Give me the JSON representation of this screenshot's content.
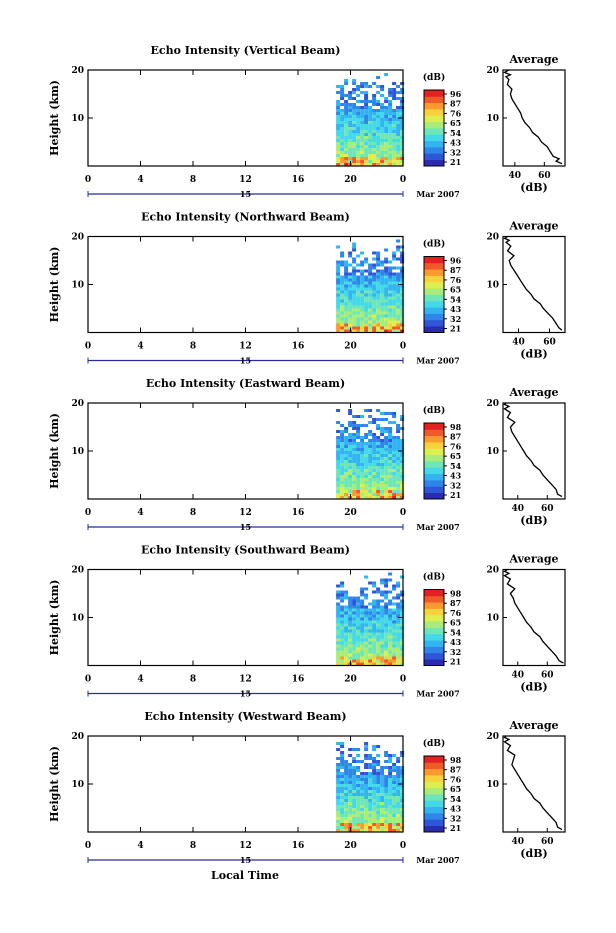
{
  "figure": {
    "xlabel": "Local Time",
    "date_label": "15",
    "month_label": "Mar 2007",
    "x_ticks": [
      "0",
      "4",
      "8",
      "12",
      "16",
      "20",
      "0"
    ],
    "y_label": "Height (km)",
    "y_ticks": [
      "10",
      "20"
    ],
    "colorbar_unit": "(dB)",
    "colorbar_colors": [
      "#2b2bb0",
      "#2f55d8",
      "#2f86e8",
      "#33b4f0",
      "#44d8e8",
      "#6ee6b8",
      "#a8ec7a",
      "#dcee50",
      "#f8d23c",
      "#f89a30",
      "#f05a2a",
      "#e02222"
    ]
  },
  "chart_data": [
    {
      "type": "heatmap",
      "title": "Echo Intensity (Vertical Beam)",
      "colorbar_ticks": [
        "96",
        "87",
        "76",
        "65",
        "54",
        "43",
        "32",
        "21"
      ],
      "profile": {
        "title": "Average",
        "xlabel": "(dB)",
        "x_ticks": [
          "40",
          "60"
        ],
        "y_ticks": [
          "10",
          "20"
        ],
        "xlim": [
          32,
          74
        ],
        "ylim": [
          0,
          20
        ],
        "points": [
          [
            72,
            0.5
          ],
          [
            68,
            1
          ],
          [
            70,
            1.5
          ],
          [
            66,
            2
          ],
          [
            64,
            3
          ],
          [
            62,
            4
          ],
          [
            58,
            5
          ],
          [
            56,
            6
          ],
          [
            52,
            7
          ],
          [
            50,
            8
          ],
          [
            47,
            9
          ],
          [
            45,
            10
          ],
          [
            44,
            11
          ],
          [
            42,
            12
          ],
          [
            40,
            13
          ],
          [
            38,
            14
          ],
          [
            37,
            15
          ],
          [
            38,
            16
          ],
          [
            35,
            17
          ],
          [
            36,
            18
          ],
          [
            34,
            18.6
          ],
          [
            37,
            19
          ],
          [
            33,
            19.5
          ],
          [
            36,
            20
          ]
        ]
      }
    },
    {
      "type": "heatmap",
      "title": "Echo Intensity (Northward Beam)",
      "colorbar_ticks": [
        "96",
        "87",
        "76",
        "65",
        "54",
        "43",
        "32",
        "21"
      ],
      "profile": {
        "title": "Average",
        "xlabel": "(dB)",
        "x_ticks": [
          "40",
          "60"
        ],
        "y_ticks": [
          "10",
          "20"
        ],
        "xlim": [
          30,
          70
        ],
        "ylim": [
          0,
          20
        ],
        "points": [
          [
            68,
            0.5
          ],
          [
            66,
            1
          ],
          [
            64,
            2
          ],
          [
            62,
            3
          ],
          [
            59,
            4
          ],
          [
            56,
            5
          ],
          [
            54,
            6
          ],
          [
            50,
            7
          ],
          [
            48,
            8
          ],
          [
            45,
            9
          ],
          [
            43,
            10
          ],
          [
            41,
            11
          ],
          [
            39,
            12
          ],
          [
            37,
            13
          ],
          [
            35,
            14
          ],
          [
            34,
            15
          ],
          [
            37,
            16
          ],
          [
            33,
            17
          ],
          [
            35,
            18
          ],
          [
            32,
            18.8
          ],
          [
            34,
            19.2
          ],
          [
            31,
            19.6
          ],
          [
            33,
            20
          ]
        ]
      }
    },
    {
      "type": "heatmap",
      "title": "Echo Intensity (Eastward Beam)",
      "colorbar_ticks": [
        "98",
        "87",
        "76",
        "65",
        "54",
        "43",
        "32",
        "21"
      ],
      "profile": {
        "title": "Average",
        "xlabel": "(dB)",
        "x_ticks": [
          "40",
          "60"
        ],
        "y_ticks": [
          "10",
          "20"
        ],
        "xlim": [
          30,
          72
        ],
        "ylim": [
          0,
          20
        ],
        "points": [
          [
            70,
            0.5
          ],
          [
            67,
            1
          ],
          [
            66,
            2
          ],
          [
            63,
            3
          ],
          [
            60,
            4
          ],
          [
            57,
            5
          ],
          [
            55,
            6
          ],
          [
            51,
            7
          ],
          [
            49,
            8
          ],
          [
            46,
            9
          ],
          [
            44,
            10
          ],
          [
            42,
            11
          ],
          [
            40,
            12
          ],
          [
            38,
            13
          ],
          [
            36,
            14
          ],
          [
            35,
            15
          ],
          [
            38,
            16
          ],
          [
            33,
            17
          ],
          [
            35,
            18
          ],
          [
            31,
            18.8
          ],
          [
            34,
            19.3
          ],
          [
            31,
            19.7
          ],
          [
            32,
            20
          ]
        ]
      }
    },
    {
      "type": "heatmap",
      "title": "Echo Intensity (Southward Beam)",
      "colorbar_ticks": [
        "98",
        "87",
        "76",
        "65",
        "54",
        "43",
        "32",
        "21"
      ],
      "profile": {
        "title": "Average",
        "xlabel": "(dB)",
        "x_ticks": [
          "40",
          "60"
        ],
        "y_ticks": [
          "10",
          "20"
        ],
        "xlim": [
          30,
          72
        ],
        "ylim": [
          0,
          20
        ],
        "points": [
          [
            71,
            0.5
          ],
          [
            68,
            1
          ],
          [
            66,
            2
          ],
          [
            63,
            3
          ],
          [
            60,
            4
          ],
          [
            57,
            5
          ],
          [
            55,
            6
          ],
          [
            51,
            7
          ],
          [
            49,
            8
          ],
          [
            46,
            9
          ],
          [
            44,
            10
          ],
          [
            42,
            11
          ],
          [
            40,
            12
          ],
          [
            38,
            13
          ],
          [
            37,
            14
          ],
          [
            35,
            15
          ],
          [
            38,
            16
          ],
          [
            33,
            17
          ],
          [
            35,
            18
          ],
          [
            31,
            18.7
          ],
          [
            34,
            19.2
          ],
          [
            31,
            19.6
          ],
          [
            33,
            20
          ]
        ]
      }
    },
    {
      "type": "heatmap",
      "title": "Echo Intensity (Westward Beam)",
      "colorbar_ticks": [
        "98",
        "87",
        "76",
        "65",
        "54",
        "43",
        "32",
        "21"
      ],
      "profile": {
        "title": "Average",
        "xlabel": "(dB)",
        "x_ticks": [
          "40",
          "60"
        ],
        "y_ticks": [
          "10",
          "20"
        ],
        "xlim": [
          30,
          72
        ],
        "ylim": [
          0,
          20
        ],
        "points": [
          [
            70,
            0.5
          ],
          [
            67,
            1
          ],
          [
            66,
            2
          ],
          [
            63,
            3
          ],
          [
            60,
            4
          ],
          [
            57,
            5
          ],
          [
            55,
            6
          ],
          [
            51,
            7
          ],
          [
            49,
            8
          ],
          [
            46,
            9
          ],
          [
            44,
            10
          ],
          [
            42,
            11
          ],
          [
            40,
            12
          ],
          [
            38,
            13
          ],
          [
            36,
            14
          ],
          [
            37,
            15
          ],
          [
            38,
            16
          ],
          [
            33,
            17
          ],
          [
            35,
            18
          ],
          [
            31,
            18.8
          ],
          [
            34,
            19.3
          ],
          [
            31,
            19.7
          ],
          [
            32,
            20
          ]
        ]
      }
    }
  ]
}
